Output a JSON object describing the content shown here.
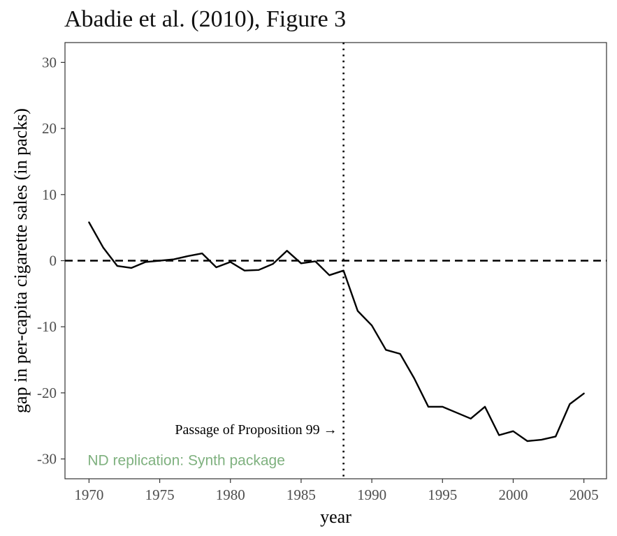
{
  "chart_data": {
    "type": "line",
    "title": "Abadie et al. (2010), Figure 3",
    "xlabel": "year",
    "ylabel": "gap in per-capita cigarette sales (in packs)",
    "xlim": [
      1968.3,
      2006.6
    ],
    "ylim": [
      -33,
      33
    ],
    "x_ticks": [
      1970,
      1975,
      1980,
      1985,
      1990,
      1995,
      2000,
      2005
    ],
    "y_ticks": [
      -30,
      -20,
      -10,
      0,
      10,
      20,
      30
    ],
    "grid": false,
    "legend": "none",
    "series": [
      {
        "x": [
          1970,
          1971,
          1972,
          1973,
          1974,
          1975,
          1976,
          1977,
          1978,
          1979,
          1980,
          1981,
          1982,
          1983,
          1984,
          1985,
          1986,
          1987,
          1988,
          1989,
          1990,
          1991,
          1992,
          1993,
          1994,
          1995,
          1996,
          1997,
          1998,
          1999,
          2000,
          2001,
          2002,
          2003,
          2004,
          2005
        ],
        "y": [
          5.8,
          2.0,
          -0.8,
          -1.1,
          -0.2,
          0.0,
          0.2,
          0.7,
          1.1,
          -1.0,
          -0.2,
          -1.5,
          -1.4,
          -0.5,
          1.5,
          -0.4,
          -0.1,
          -2.2,
          -1.5,
          -7.6,
          -9.8,
          -13.5,
          -14.1,
          -17.8,
          -22.1,
          -22.1,
          -23.0,
          -23.9,
          -22.1,
          -26.4,
          -25.8,
          -27.3,
          -27.1,
          -26.6,
          -21.7,
          -20.1
        ],
        "color": "#000000"
      }
    ],
    "reference_lines": [
      {
        "axis": "y",
        "value": 0,
        "style": "dashed"
      },
      {
        "axis": "x",
        "value": 1988,
        "style": "dotted"
      }
    ],
    "annotations": [
      {
        "text": "Passage of Proposition 99 →",
        "x": 1988,
        "y": -25.5
      },
      {
        "text": "ND replication: Synth package",
        "x": 1970,
        "y": -30.2,
        "color": "#7fb17f"
      }
    ]
  }
}
